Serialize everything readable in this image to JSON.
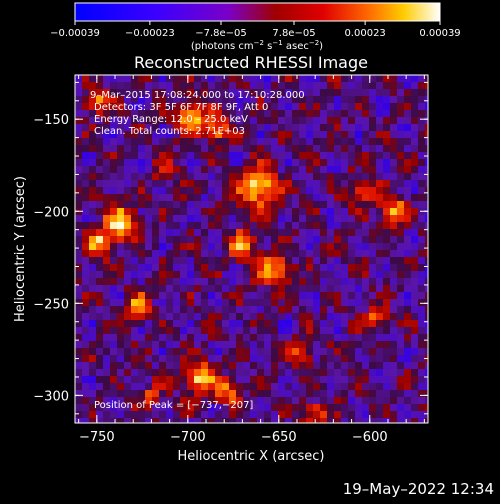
{
  "chart_data": {
    "type": "heatmap",
    "title": "Reconstructed RHESSI Image",
    "xlabel": "Heliocentric X (arcsec)",
    "ylabel": "Heliocentric Y (arcsec)",
    "xlim": [
      -762,
      -568
    ],
    "ylim": [
      -315,
      -126
    ],
    "x_ticks": [
      -750,
      -700,
      -650,
      -600
    ],
    "y_ticks": [
      -150,
      -200,
      -250,
      -300
    ],
    "x_tick_labels": [
      "−750",
      "−700",
      "−650",
      "−600"
    ],
    "y_tick_labels": [
      "−150",
      "−200",
      "−250",
      "−300"
    ],
    "colorbar": {
      "min": -0.00039,
      "max": 0.00039,
      "ticks": [
        -0.00039,
        -0.00023,
        -7.8e-05,
        7.8e-05,
        0.00023,
        0.00039
      ],
      "tick_labels": [
        "−0.00039",
        "−0.00023",
        "−7.8e−05",
        "7.8e−05",
        "0.00023",
        "0.00039"
      ],
      "unit_main": "(photons cm",
      "unit_sup1": "−2",
      "unit_mid": " s",
      "unit_sup2": "−1",
      "unit_mid2": " asec",
      "unit_sup3": "−2",
      "unit_end": ")"
    },
    "annotations": {
      "time_range": "9–Mar–2015 17:08:24.000  to 17:10:28.000",
      "detectors": "Detectors: 3F 5F 6F 7F 8F 9F, Att 0",
      "energy": "Energy Range: 12.0 – 25.0 keV",
      "clean": "Clean.  Total counts: 2.71E+03",
      "peak": "Position of Peak = [−737,−207]"
    },
    "peak_position": [
      -737,
      -207
    ],
    "hot_spots": [
      {
        "x": -661,
        "y": -187,
        "intensity": 1.0,
        "r": 14
      },
      {
        "x": -653,
        "y": -232,
        "intensity": 0.75,
        "r": 12
      },
      {
        "x": -670,
        "y": -218,
        "intensity": 0.7,
        "r": 10
      },
      {
        "x": -737,
        "y": -207,
        "intensity": 0.95,
        "r": 12
      },
      {
        "x": -748,
        "y": -218,
        "intensity": 0.7,
        "r": 10
      },
      {
        "x": -698,
        "y": -148,
        "intensity": 0.85,
        "r": 11
      },
      {
        "x": -683,
        "y": -156,
        "intensity": 0.7,
        "r": 9
      },
      {
        "x": -750,
        "y": -141,
        "intensity": 0.75,
        "r": 9
      },
      {
        "x": -727,
        "y": -252,
        "intensity": 0.7,
        "r": 9
      },
      {
        "x": -694,
        "y": -290,
        "intensity": 0.85,
        "r": 11
      },
      {
        "x": -678,
        "y": -298,
        "intensity": 0.7,
        "r": 9
      },
      {
        "x": -637,
        "y": -276,
        "intensity": 0.6,
        "r": 9
      },
      {
        "x": -587,
        "y": -200,
        "intensity": 0.8,
        "r": 10
      },
      {
        "x": -604,
        "y": -189,
        "intensity": 0.7,
        "r": 9
      },
      {
        "x": -596,
        "y": -258,
        "intensity": 0.6,
        "r": 8
      },
      {
        "x": -630,
        "y": -310,
        "intensity": 0.6,
        "r": 9
      },
      {
        "x": -720,
        "y": -300,
        "intensity": 0.5,
        "r": 8
      },
      {
        "x": -712,
        "y": -178,
        "intensity": 0.55,
        "r": 8
      }
    ]
  },
  "footer": {
    "date": "19–May–2022 12:34"
  }
}
